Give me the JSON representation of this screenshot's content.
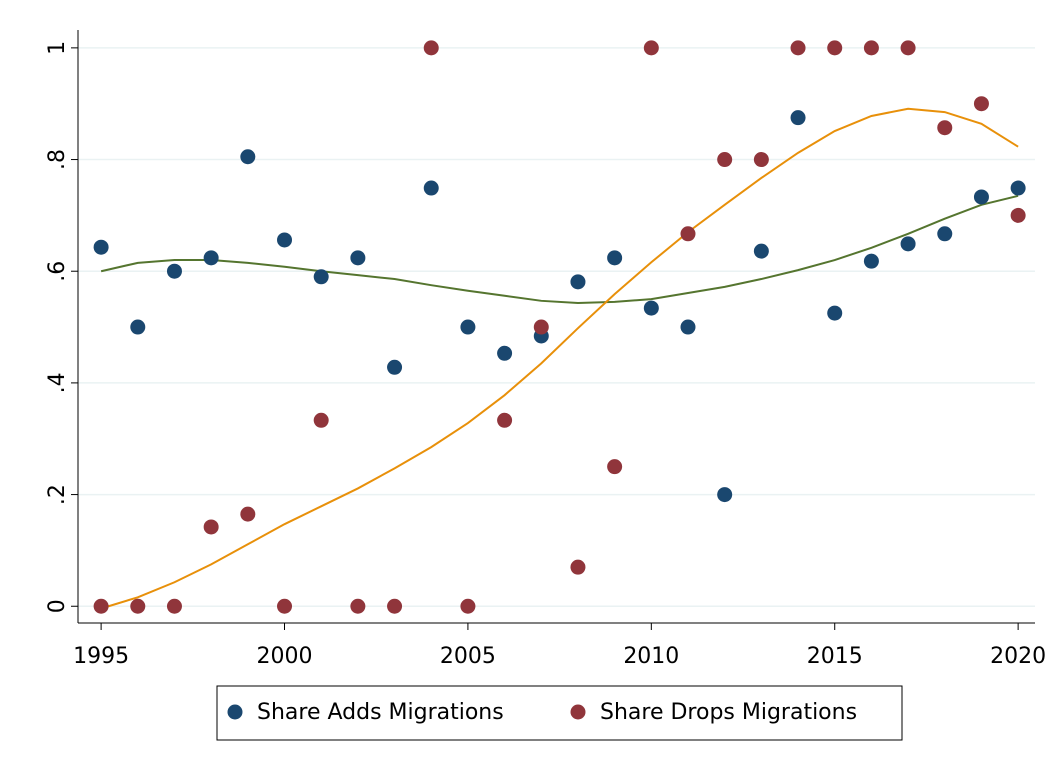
{
  "chart_data": {
    "type": "scatter",
    "x": [
      1995,
      1996,
      1997,
      1998,
      1999,
      2000,
      2001,
      2002,
      2003,
      2004,
      2005,
      2006,
      2007,
      2008,
      2009,
      2010,
      2011,
      2012,
      2013,
      2014,
      2015,
      2016,
      2017,
      2018,
      2019,
      2020
    ],
    "series": [
      {
        "name": "Share Adds Migrations",
        "type": "scatter",
        "color": "#1a476f",
        "values": [
          0.643,
          0.5,
          0.6,
          0.624,
          0.805,
          0.656,
          0.59,
          0.624,
          0.428,
          0.749,
          0.5,
          0.453,
          0.484,
          0.581,
          0.624,
          0.534,
          0.5,
          0.2,
          0.636,
          0.875,
          0.525,
          0.618,
          0.649,
          0.667,
          0.733,
          0.749
        ]
      },
      {
        "name": "Share Drops Migrations",
        "type": "scatter",
        "color": "#90353b",
        "values": [
          0,
          0,
          0,
          0.142,
          0.165,
          0,
          0.333,
          0,
          0,
          1,
          0,
          0.333,
          0.5,
          0.07,
          0.25,
          1,
          0.667,
          0.8,
          0.8,
          1,
          1,
          1,
          1,
          0.857,
          0.9,
          0.7
        ]
      },
      {
        "type": "line",
        "color": "#55752f",
        "values": [
          0.6,
          0.615,
          0.62,
          0.62,
          0.615,
          0.608,
          0.6,
          0.593,
          0.586,
          0.575,
          0.565,
          0.556,
          0.547,
          0.543,
          0.545,
          0.55,
          0.561,
          0.572,
          0.586,
          0.602,
          0.62,
          0.642,
          0.667,
          0.694,
          0.719,
          0.735
        ]
      },
      {
        "type": "line",
        "color": "#e8900a",
        "values": [
          -0.004,
          0.016,
          0.043,
          0.075,
          0.111,
          0.147,
          0.179,
          0.211,
          0.247,
          0.285,
          0.328,
          0.378,
          0.435,
          0.498,
          0.559,
          0.616,
          0.67,
          0.719,
          0.767,
          0.812,
          0.851,
          0.878,
          0.891,
          0.885,
          0.864,
          0.823
        ]
      }
    ],
    "xlim": [
      1994.37,
      2020.46
    ],
    "xticks": [
      1995,
      2000,
      2005,
      2010,
      2015,
      2020
    ],
    "ylim": [
      -0.03,
      1.032
    ],
    "yticks": [
      0,
      {
        "value": 0.2,
        "label": ".2"
      },
      {
        "value": 0.4,
        "label": ".4"
      },
      {
        "value": 0.6,
        "label": ".6"
      },
      {
        "value": 0.8,
        "label": ".8"
      },
      1
    ],
    "grid": true
  }
}
